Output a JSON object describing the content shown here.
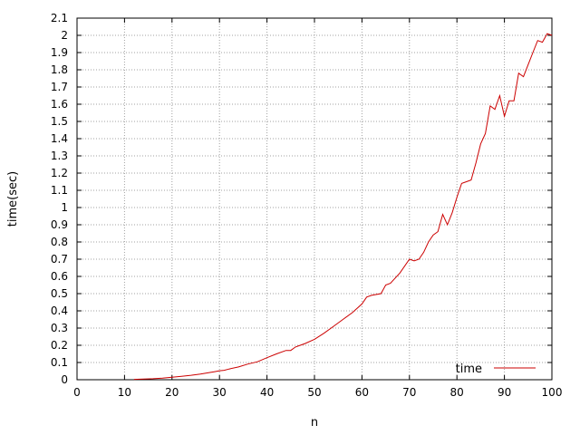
{
  "chart_data": {
    "type": "line",
    "title": "",
    "xlabel": "n",
    "ylabel": "time(sec)",
    "xlim": [
      0,
      100
    ],
    "ylim": [
      0,
      2.1
    ],
    "x_ticks": [
      "0",
      "10",
      "20",
      "30",
      "40",
      "50",
      "60",
      "70",
      "80",
      "90",
      "100"
    ],
    "y_ticks": [
      "0",
      "0.1",
      "0.2",
      "0.3",
      "0.4",
      "0.5",
      "0.6",
      "0.7",
      "0.8",
      "0.9",
      "1",
      "1.1",
      "1.2",
      "1.3",
      "1.4",
      "1.5",
      "1.6",
      "1.7",
      "1.8",
      "1.9",
      "2",
      "2.1"
    ],
    "grid": true,
    "legend_position": "bottom-right",
    "series": [
      {
        "name": "time",
        "color": "#cc0000",
        "x": [
          12,
          14,
          16,
          18,
          20,
          22,
          24,
          26,
          28,
          29,
          30,
          31,
          32,
          34,
          36,
          38,
          40,
          42,
          44,
          45,
          46,
          47,
          48,
          50,
          52,
          54,
          56,
          58,
          60,
          61,
          62,
          64,
          65,
          66,
          68,
          70,
          71,
          72,
          73,
          74,
          75,
          76,
          77,
          78,
          79,
          80,
          81,
          82,
          83,
          84,
          85,
          86,
          87,
          88,
          89,
          90,
          91,
          92,
          93,
          94,
          95,
          96,
          97,
          98,
          99,
          100
        ],
        "y": [
          0.002,
          0.004,
          0.006,
          0.009,
          0.014,
          0.02,
          0.026,
          0.033,
          0.042,
          0.047,
          0.052,
          0.055,
          0.062,
          0.074,
          0.091,
          0.104,
          0.128,
          0.15,
          0.17,
          0.17,
          0.19,
          0.2,
          0.21,
          0.235,
          0.27,
          0.31,
          0.35,
          0.39,
          0.44,
          0.48,
          0.49,
          0.5,
          0.55,
          0.56,
          0.62,
          0.7,
          0.69,
          0.7,
          0.74,
          0.8,
          0.84,
          0.86,
          0.96,
          0.9,
          0.97,
          1.06,
          1.14,
          1.15,
          1.16,
          1.26,
          1.37,
          1.43,
          1.59,
          1.57,
          1.65,
          1.53,
          1.62,
          1.62,
          1.78,
          1.76,
          1.83,
          1.9,
          1.97,
          1.96,
          2.01,
          2.0
        ]
      }
    ]
  }
}
